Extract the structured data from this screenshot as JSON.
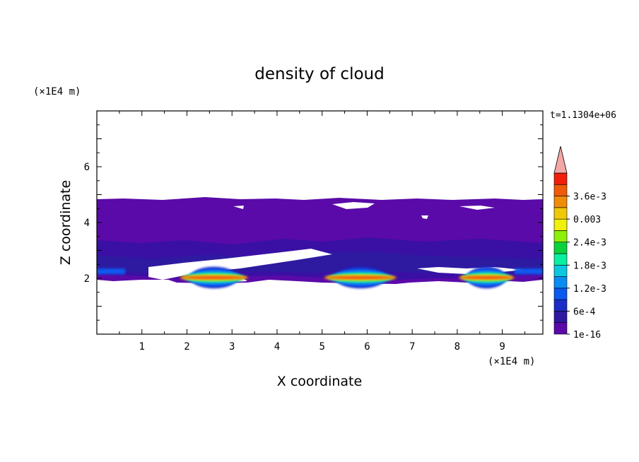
{
  "chart_data": {
    "type": "heatmap",
    "title": "density of cloud",
    "xlabel": "X coordinate",
    "ylabel": "Z coordinate",
    "x_unit": "(×1E4 m)",
    "y_unit": "(×1E4 m)",
    "time_label": "t=1.1304e+06",
    "xlim": [
      0,
      9.9
    ],
    "ylim": [
      0,
      8
    ],
    "x_ticks": [
      1,
      2,
      3,
      4,
      5,
      6,
      7,
      8,
      9
    ],
    "y_ticks": [
      2,
      4,
      6
    ],
    "colorbar": {
      "labels": [
        "1e-16",
        "6e-4",
        "1.2e-3",
        "1.8e-3",
        "2.4e-3",
        "0.003",
        "3.6e-3"
      ],
      "colors": [
        "#5a0aa8",
        "#2d1aa0",
        "#1a2cc8",
        "#0a5af0",
        "#0a8cf5",
        "#0ac8e0",
        "#0af0a0",
        "#0ad23c",
        "#8cf00a",
        "#f0f00a",
        "#f0c80a",
        "#f08c0a",
        "#f05a0a",
        "#f01e0a"
      ],
      "over_color": "#f4a7a7"
    },
    "cloud_layer": {
      "base_z": 1.9,
      "top_z": 4.8,
      "core_z": [
        1.9,
        2.6
      ],
      "dense_cores_x": [
        [
          1.8,
          3.4
        ],
        [
          5.0,
          6.7
        ],
        [
          8.0,
          9.3
        ]
      ]
    }
  }
}
